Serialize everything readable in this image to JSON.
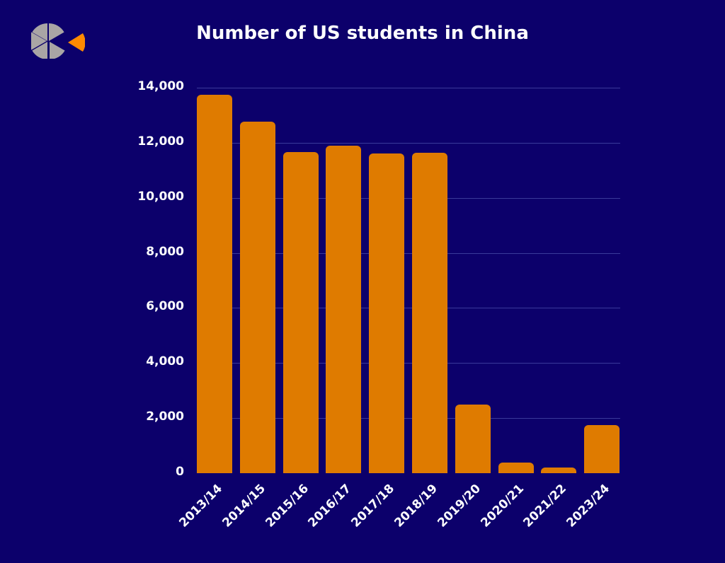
{
  "header": {
    "title": "Number of US students in China"
  },
  "logo": {
    "icon": "pie-segments-logo-icon",
    "colors": {
      "segments": "#a9a5a5",
      "accent": "#ff8a00"
    }
  },
  "colors": {
    "background": "#0c006b",
    "bar": "#df7b00",
    "grid": "#3a3a9a",
    "text": "#ffffff"
  },
  "chart_data": {
    "type": "bar",
    "title": "Number of US students in China",
    "xlabel": "",
    "ylabel": "",
    "categories": [
      "2013/14",
      "2014/15",
      "2015/16",
      "2016/17",
      "2017/18",
      "2018/19",
      "2019/20",
      "2020/21",
      "2021/22",
      "2023/24"
    ],
    "values": [
      13740,
      12770,
      11670,
      11900,
      11610,
      11640,
      2480,
      380,
      210,
      1750
    ],
    "ylim": [
      0,
      14000
    ],
    "yticks": [
      0,
      2000,
      4000,
      6000,
      8000,
      10000,
      12000,
      14000
    ],
    "ytick_labels": [
      "0",
      "2,000",
      "4,000",
      "6,000",
      "8,000",
      "10,000",
      "12,000",
      "14,000"
    ],
    "grid": true,
    "legend": null
  }
}
